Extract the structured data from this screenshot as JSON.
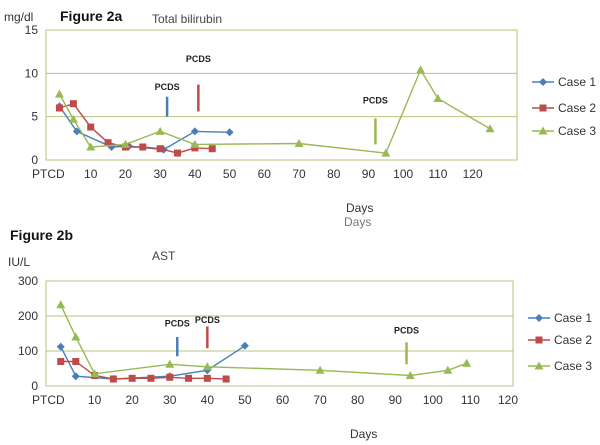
{
  "chart_data": [
    {
      "id": "a",
      "type": "line",
      "figure_label": "Figure 2a",
      "title": "Total bilirubin",
      "ylabel": "mg/dl",
      "xlabel": "Days",
      "ylim": [
        0,
        15
      ],
      "yticks": [
        0,
        5,
        10,
        15
      ],
      "xlim": [
        0,
        125
      ],
      "xticks": [
        {
          "value": 0,
          "label": "PTCD"
        },
        {
          "value": 10,
          "label": "10"
        },
        {
          "value": 20,
          "label": "20"
        },
        {
          "value": 30,
          "label": "30"
        },
        {
          "value": 40,
          "label": "40"
        },
        {
          "value": 50,
          "label": "50"
        },
        {
          "value": 60,
          "label": "60"
        },
        {
          "value": 70,
          "label": "70"
        },
        {
          "value": 80,
          "label": "80"
        },
        {
          "value": 90,
          "label": "90"
        },
        {
          "value": 100,
          "label": "100"
        },
        {
          "value": 110,
          "label": "110"
        },
        {
          "value": 120,
          "label": "120"
        }
      ],
      "grid": true,
      "legend": "right",
      "series": [
        {
          "name": "Case 1",
          "color": "#4a7ebb",
          "marker": "diamond",
          "points": [
            [
              1,
              6.2
            ],
            [
              6,
              3.3
            ],
            [
              16,
              1.5
            ],
            [
              21,
              1.6
            ],
            [
              31,
              1.2
            ],
            [
              40,
              3.3
            ],
            [
              50,
              3.2
            ]
          ]
        },
        {
          "name": "Case 2",
          "color": "#be4b48",
          "marker": "square",
          "points": [
            [
              1,
              6.0
            ],
            [
              5,
              6.5
            ],
            [
              10,
              3.8
            ],
            [
              15,
              2.0
            ],
            [
              20,
              1.5
            ],
            [
              25,
              1.5
            ],
            [
              30,
              1.3
            ],
            [
              35,
              0.8
            ],
            [
              40,
              1.4
            ],
            [
              45,
              1.3
            ]
          ]
        },
        {
          "name": "Case 3",
          "color": "#98b954",
          "marker": "triangle",
          "points": [
            [
              1,
              7.6
            ],
            [
              5,
              4.7
            ],
            [
              10,
              1.5
            ],
            [
              20,
              1.8
            ],
            [
              30,
              3.3
            ],
            [
              40,
              1.8
            ],
            [
              70,
              1.9
            ],
            [
              95,
              0.8
            ],
            [
              105,
              10.4
            ],
            [
              110,
              7.1
            ],
            [
              125,
              3.6
            ]
          ]
        }
      ],
      "annotations": [
        {
          "text": "PCDS",
          "x": 32,
          "y_text": 8.1,
          "bar_from": 5.0,
          "bar_to": 7.3,
          "color": "#4a7ebb"
        },
        {
          "text": "PCDS",
          "x": 41,
          "y_text": 11.3,
          "bar_from": 5.6,
          "bar_to": 8.7,
          "color": "#be4b48"
        },
        {
          "text": "PCDS",
          "x": 92,
          "y_text": 6.5,
          "bar_from": 1.8,
          "bar_to": 4.8,
          "color": "#98b954"
        }
      ]
    },
    {
      "id": "b",
      "type": "line",
      "figure_label": "Figure 2b",
      "title": "AST",
      "ylabel": "IU/L",
      "xlabel": "Days",
      "ylim": [
        0,
        300
      ],
      "yticks": [
        0,
        100,
        200,
        300
      ],
      "xlim": [
        0,
        120
      ],
      "xticks": [
        {
          "value": 0,
          "label": "PTCD"
        },
        {
          "value": 10,
          "label": "10"
        },
        {
          "value": 20,
          "label": "20"
        },
        {
          "value": 30,
          "label": "30"
        },
        {
          "value": 40,
          "label": "40"
        },
        {
          "value": 50,
          "label": "50"
        },
        {
          "value": 60,
          "label": "60"
        },
        {
          "value": 70,
          "label": "70"
        },
        {
          "value": 80,
          "label": "80"
        },
        {
          "value": 90,
          "label": "90"
        },
        {
          "value": 100,
          "label": "100"
        },
        {
          "value": 110,
          "label": "110"
        },
        {
          "value": 120,
          "label": "120"
        }
      ],
      "grid": true,
      "legend": "right",
      "series": [
        {
          "name": "Case 1",
          "color": "#4a7ebb",
          "marker": "diamond",
          "points": [
            [
              1,
              112
            ],
            [
              5,
              28
            ],
            [
              15,
              20
            ],
            [
              30,
              28
            ],
            [
              40,
              45
            ],
            [
              50,
              115
            ]
          ]
        },
        {
          "name": "Case 2",
          "color": "#be4b48",
          "marker": "square",
          "points": [
            [
              1,
              70
            ],
            [
              5,
              70
            ],
            [
              10,
              30
            ],
            [
              15,
              20
            ],
            [
              20,
              22
            ],
            [
              25,
              22
            ],
            [
              30,
              25
            ],
            [
              35,
              22
            ],
            [
              40,
              22
            ],
            [
              45,
              20
            ]
          ]
        },
        {
          "name": "Case 3",
          "color": "#98b954",
          "marker": "triangle",
          "points": [
            [
              1,
              232
            ],
            [
              5,
              140
            ],
            [
              10,
              35
            ],
            [
              30,
              62
            ],
            [
              40,
              55
            ],
            [
              70,
              45
            ],
            [
              94,
              30
            ],
            [
              104,
              45
            ],
            [
              109,
              65
            ]
          ]
        }
      ],
      "annotations": [
        {
          "text": "PCDS",
          "x": 32,
          "y_text": 170,
          "bar_from": 85,
          "bar_to": 140,
          "color": "#4a7ebb"
        },
        {
          "text": "PCDS",
          "x": 40,
          "y_text": 180,
          "bar_from": 108,
          "bar_to": 170,
          "color": "#be4b48"
        },
        {
          "text": "PCDS",
          "x": 93,
          "y_text": 150,
          "bar_from": 62,
          "bar_to": 125,
          "color": "#98b954"
        }
      ]
    }
  ],
  "stray_text": "Days"
}
